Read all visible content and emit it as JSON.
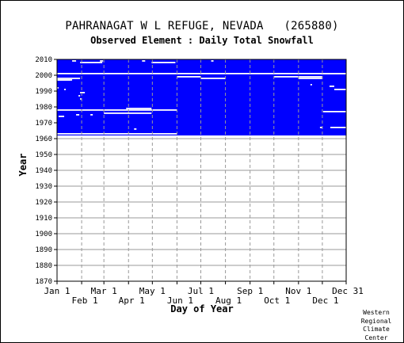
{
  "header": {
    "station": "PAHRANAGAT W L REFUGE, NEVADA   (265880)",
    "element": "Observed Element : Daily Total Snowfall"
  },
  "footnote": [
    "Western",
    "Regional",
    "Climate",
    "Center"
  ],
  "colors": {
    "data": "#0000ff",
    "grid": "#999999",
    "background": "#ffffff",
    "text": "#000000"
  },
  "chart_data": {
    "type": "heatmap",
    "title": "Observed Element : Daily Total Snowfall",
    "xlabel": "Day of Year",
    "ylabel": "Year",
    "xlim": [
      1,
      365
    ],
    "ylim": [
      1870,
      2010
    ],
    "grid": true,
    "y_ticks": [
      1870,
      1880,
      1890,
      1900,
      1910,
      1920,
      1930,
      1940,
      1950,
      1960,
      1970,
      1980,
      1990,
      2000,
      2010
    ],
    "x_ticks_upper": [
      {
        "label": "Jan 1",
        "day": 1
      },
      {
        "label": "Mar 1",
        "day": 60
      },
      {
        "label": "May 1",
        "day": 121
      },
      {
        "label": "Jul 1",
        "day": 182
      },
      {
        "label": "Sep 1",
        "day": 244
      },
      {
        "label": "Nov 1",
        "day": 305
      },
      {
        "label": "Dec 31",
        "day": 365
      }
    ],
    "x_ticks_lower": [
      {
        "label": "Feb 1",
        "day": 32
      },
      {
        "label": "Apr 1",
        "day": 91
      },
      {
        "label": "Jun 1",
        "day": 152
      },
      {
        "label": "Aug 1",
        "day": 213
      },
      {
        "label": "Oct 1",
        "day": 274
      },
      {
        "label": "Dec 1",
        "day": 335
      }
    ],
    "data_extent": {
      "years": [
        1963,
        2010
      ],
      "days": [
        1,
        365
      ]
    },
    "missing_periods": [
      {
        "year": 2009,
        "days": [
          20,
          25
        ]
      },
      {
        "year": 2009,
        "days": [
          55,
          59
        ]
      },
      {
        "year": 2009,
        "days": [
          108,
          112
        ]
      },
      {
        "year": 2009,
        "days": [
          195,
          198
        ]
      },
      {
        "year": 2008,
        "days": [
          30,
          58
        ]
      },
      {
        "year": 2008,
        "days": [
          120,
          150
        ]
      },
      {
        "year": 2001,
        "days": [
          1,
          365
        ]
      },
      {
        "year": 2001,
        "days": [
          333,
          365
        ]
      },
      {
        "year": 1999,
        "days": [
          152,
          182
        ]
      },
      {
        "year": 1999,
        "days": [
          274,
          335
        ]
      },
      {
        "year": 1998,
        "days": [
          1,
          30
        ]
      },
      {
        "year": 1998,
        "days": [
          182,
          213
        ]
      },
      {
        "year": 1998,
        "days": [
          305,
          335
        ]
      },
      {
        "year": 1997,
        "days": [
          1,
          18
        ]
      },
      {
        "year": 1997,
        "days": [
          1,
          20
        ]
      },
      {
        "year": 1994,
        "days": [
          320,
          322
        ]
      },
      {
        "year": 1993,
        "days": [
          344,
          350
        ]
      },
      {
        "year": 1992,
        "days": [
          1,
          3
        ]
      },
      {
        "year": 1991,
        "days": [
          10,
          12
        ]
      },
      {
        "year": 1991,
        "days": [
          350,
          365
        ]
      },
      {
        "year": 1989,
        "days": [
          30,
          36
        ]
      },
      {
        "year": 1987,
        "days": [
          28,
          30
        ]
      },
      {
        "year": 1985,
        "days": [
          30,
          32
        ]
      },
      {
        "year": 1979,
        "days": [
          88,
          120
        ]
      },
      {
        "year": 1978,
        "days": [
          1,
          152
        ]
      },
      {
        "year": 1977,
        "days": [
          336,
          365
        ]
      },
      {
        "year": 1976,
        "days": [
          60,
          120
        ]
      },
      {
        "year": 1975,
        "days": [
          25,
          29
        ]
      },
      {
        "year": 1975,
        "days": [
          43,
          46
        ]
      },
      {
        "year": 1974,
        "days": [
          3,
          10
        ]
      },
      {
        "year": 1967,
        "days": [
          332,
          335
        ]
      },
      {
        "year": 1967,
        "days": [
          345,
          365
        ]
      },
      {
        "year": 1966,
        "days": [
          98,
          101
        ]
      },
      {
        "year": 1963,
        "days": [
          1,
          152
        ]
      }
    ]
  }
}
